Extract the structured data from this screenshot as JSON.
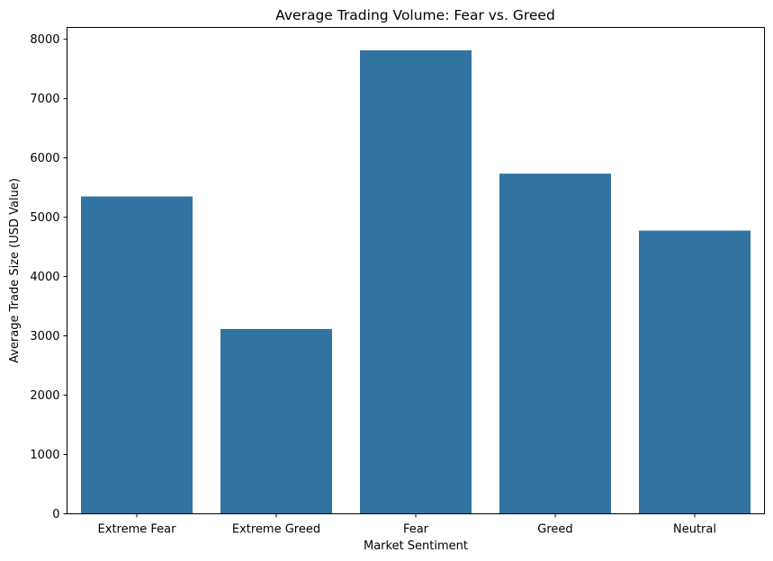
{
  "chart_data": {
    "type": "bar",
    "title": "Average Trading Volume: Fear vs. Greed",
    "xlabel": "Market Sentiment",
    "ylabel": "Average Trade Size (USD Value)",
    "categories": [
      "Extreme Fear",
      "Extreme Greed",
      "Fear",
      "Greed",
      "Neutral"
    ],
    "values": [
      5350,
      3115,
      7815,
      5735,
      4775
    ],
    "ylim": [
      0,
      8200
    ],
    "yticks": [
      0,
      1000,
      2000,
      3000,
      4000,
      5000,
      6000,
      7000,
      8000
    ],
    "grid": false,
    "legend": "none",
    "bar_color": "#3274a1"
  }
}
